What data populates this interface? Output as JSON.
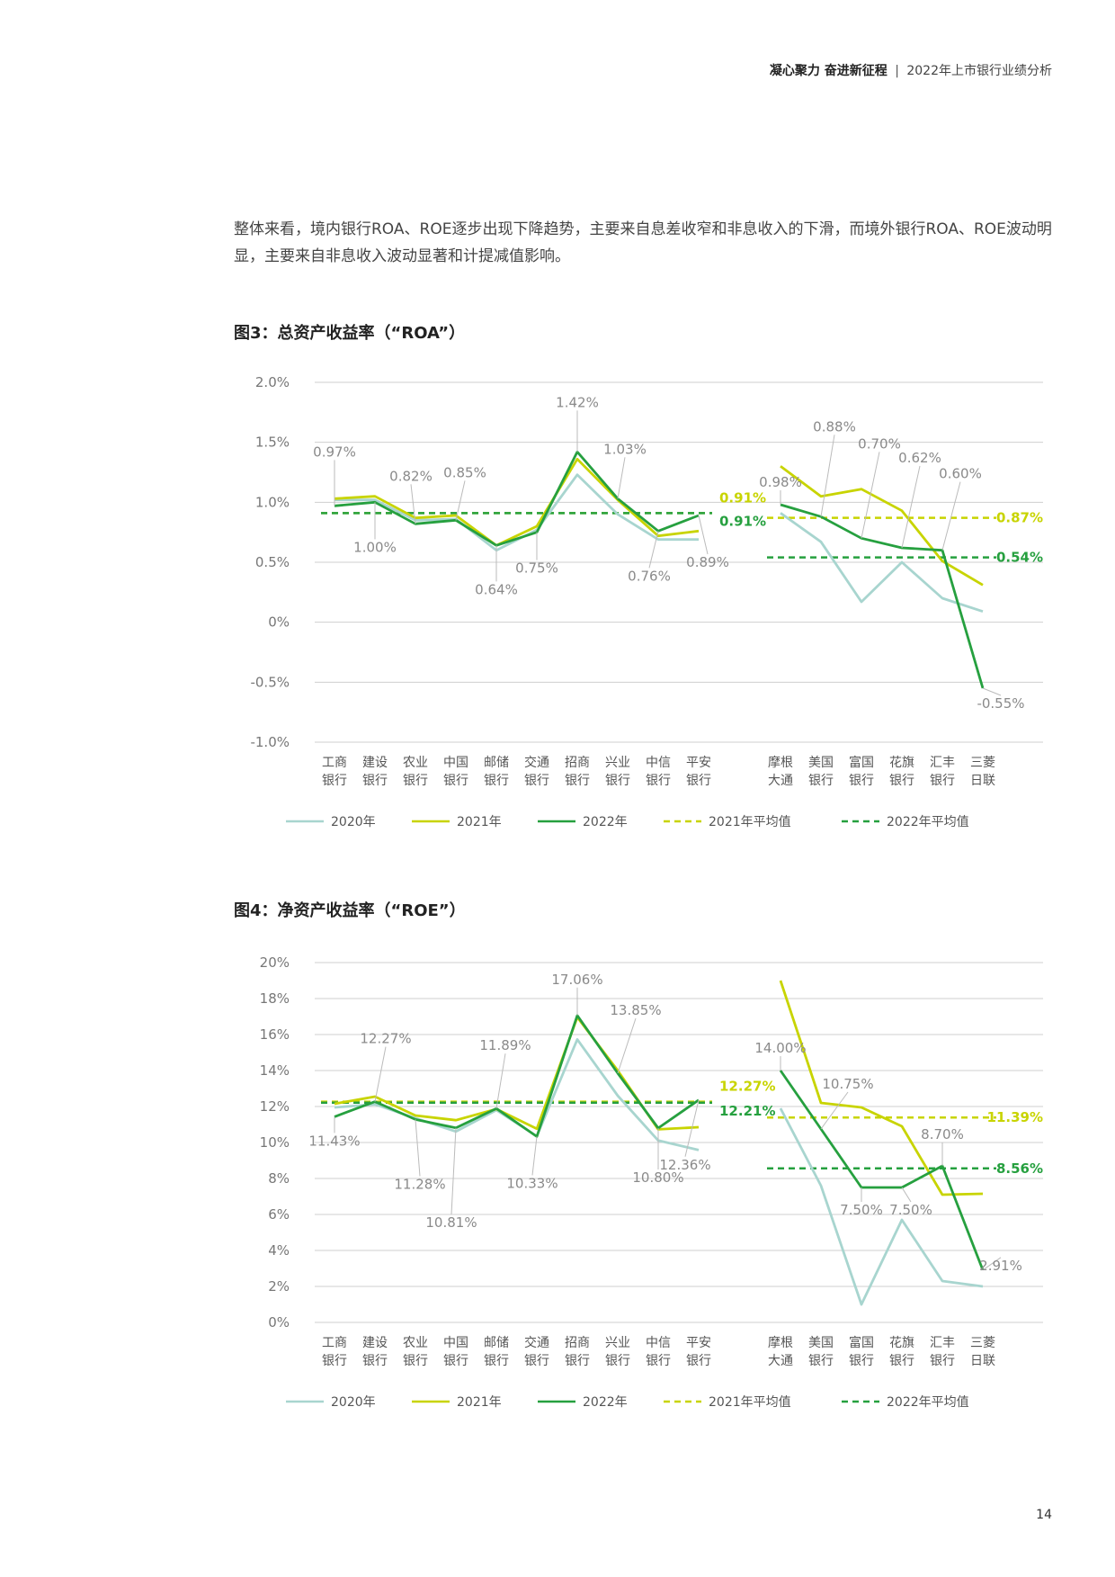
{
  "header": {
    "title": "凝心聚力 奋进新征程",
    "separator": "|",
    "subtitle": "2022年上市银行业绩分析"
  },
  "intro": "整体来看，境内银行ROA、ROE逐步出现下降趋势，主要来自息差收窄和非息收入的下滑，而境外银行ROA、ROE波动明显，主要来自非息收入波动显著和计提减值影响。",
  "colors": {
    "y2020": "#A8D5CF",
    "y2021": "#C8D400",
    "y2022": "#26A03F",
    "avg2021": "#C8D400",
    "avg2022": "#26A03F",
    "grid": "#cccccc",
    "text": "#666666"
  },
  "legend": [
    "2020年",
    "2021年",
    "2022年",
    "2021年平均值",
    "2022年平均值"
  ],
  "page_number": "14",
  "chart_data": [
    {
      "id": "roa",
      "type": "line",
      "title": "图3：总资产收益率（“ROA”）",
      "unit": "%",
      "ylim": [
        -1.0,
        2.0
      ],
      "yticks": [
        -1.0,
        -0.5,
        0,
        0.5,
        1.0,
        1.5,
        2.0
      ],
      "ytick_labels": [
        "-1.0%",
        "-0.5%",
        "0%",
        "0.5%",
        "1.0%",
        "1.5%",
        "2.0%"
      ],
      "grid": true,
      "legend_position": "bottom",
      "categories": [
        [
          "工商",
          "银行"
        ],
        [
          "建设",
          "银行"
        ],
        [
          "农业",
          "银行"
        ],
        [
          "中国",
          "银行"
        ],
        [
          "邮储",
          "银行"
        ],
        [
          "交通",
          "银行"
        ],
        [
          "招商",
          "银行"
        ],
        [
          "兴业",
          "银行"
        ],
        [
          "中信",
          "银行"
        ],
        [
          "平安",
          "银行"
        ],
        [
          "摩根",
          "大通"
        ],
        [
          "美国",
          "银行"
        ],
        [
          "富国",
          "银行"
        ],
        [
          "花旗",
          "银行"
        ],
        [
          "汇丰",
          "银行"
        ],
        [
          "三菱",
          "日联"
        ]
      ],
      "groups": [
        [
          0,
          9
        ],
        [
          10,
          15
        ]
      ],
      "series": [
        {
          "name": "2020年",
          "color": "#A8D5CF",
          "values": [
            1.02,
            1.02,
            0.85,
            0.86,
            0.6,
            0.77,
            1.23,
            0.9,
            0.69,
            0.69,
            0.91,
            0.67,
            0.17,
            0.5,
            0.2,
            0.09
          ]
        },
        {
          "name": "2021年",
          "color": "#C8D400",
          "values": [
            1.03,
            1.05,
            0.87,
            0.89,
            0.64,
            0.8,
            1.36,
            1.02,
            0.72,
            0.76,
            1.3,
            1.05,
            1.11,
            0.93,
            0.51,
            0.31
          ]
        },
        {
          "name": "2022年",
          "color": "#26A03F",
          "values": [
            0.97,
            1.0,
            0.82,
            0.85,
            0.64,
            0.75,
            1.42,
            1.03,
            0.76,
            0.89,
            0.98,
            0.88,
            0.7,
            0.62,
            0.6,
            -0.55
          ]
        }
      ],
      "averages": [
        {
          "name": "2021年平均值",
          "color": "#C8D400",
          "group": 0,
          "value": 0.91,
          "label": "0.91%"
        },
        {
          "name": "2022年平均值",
          "color": "#26A03F",
          "group": 0,
          "value": 0.91,
          "label": "0.91%"
        },
        {
          "name": "2021年平均值",
          "color": "#C8D400",
          "group": 1,
          "value": 0.87,
          "label": "0.87%"
        },
        {
          "name": "2022年平均值",
          "color": "#26A03F",
          "group": 1,
          "value": 0.54,
          "label": "0.54%"
        }
      ],
      "data_labels": [
        {
          "i": 0,
          "v": 0.97,
          "text": "0.97%"
        },
        {
          "i": 1,
          "v": 1.0,
          "text": "1.00%"
        },
        {
          "i": 2,
          "v": 0.82,
          "text": "0.82%"
        },
        {
          "i": 3,
          "v": 0.85,
          "text": "0.85%"
        },
        {
          "i": 4,
          "v": 0.64,
          "text": "0.64%"
        },
        {
          "i": 5,
          "v": 0.75,
          "text": "0.75%"
        },
        {
          "i": 6,
          "v": 1.42,
          "text": "1.42%"
        },
        {
          "i": 7,
          "v": 1.03,
          "text": "1.03%"
        },
        {
          "i": 8,
          "v": 0.76,
          "text": "0.76%"
        },
        {
          "i": 9,
          "v": 0.89,
          "text": "0.89%"
        },
        {
          "i": 10,
          "v": 0.98,
          "text": "0.98%"
        },
        {
          "i": 11,
          "v": 0.88,
          "text": "0.88%"
        },
        {
          "i": 12,
          "v": 0.7,
          "text": "0.70%"
        },
        {
          "i": 13,
          "v": 0.62,
          "text": "0.62%"
        },
        {
          "i": 14,
          "v": 0.6,
          "text": "0.60%"
        },
        {
          "i": 15,
          "v": -0.55,
          "text": "-0.55%"
        }
      ]
    },
    {
      "id": "roe",
      "type": "line",
      "title": "图4：净资产收益率（“ROE”）",
      "unit": "%",
      "ylim": [
        0,
        20
      ],
      "yticks": [
        0,
        2,
        4,
        6,
        8,
        10,
        12,
        14,
        16,
        18,
        20
      ],
      "ytick_labels": [
        "0%",
        "2%",
        "4%",
        "6%",
        "8%",
        "10%",
        "12%",
        "14%",
        "16%",
        "18%",
        "20%"
      ],
      "grid": true,
      "legend_position": "bottom",
      "categories": [
        [
          "工商",
          "银行"
        ],
        [
          "建设",
          "银行"
        ],
        [
          "农业",
          "银行"
        ],
        [
          "中国",
          "银行"
        ],
        [
          "邮储",
          "银行"
        ],
        [
          "交通",
          "银行"
        ],
        [
          "招商",
          "银行"
        ],
        [
          "兴业",
          "银行"
        ],
        [
          "中信",
          "银行"
        ],
        [
          "平安",
          "银行"
        ],
        [
          "摩根",
          "大通"
        ],
        [
          "美国",
          "银行"
        ],
        [
          "富国",
          "银行"
        ],
        [
          "花旗",
          "银行"
        ],
        [
          "汇丰",
          "银行"
        ],
        [
          "三菱",
          "日联"
        ]
      ],
      "groups": [
        [
          0,
          9
        ],
        [
          10,
          15
        ]
      ],
      "series": [
        {
          "name": "2020年",
          "color": "#A8D5CF",
          "values": [
            11.95,
            12.12,
            11.35,
            10.61,
            11.8,
            10.35,
            15.73,
            12.6,
            10.11,
            9.58,
            11.9,
            7.6,
            1.0,
            5.7,
            2.3,
            2.0
          ]
        },
        {
          "name": "2021年",
          "color": "#C8D400",
          "values": [
            12.15,
            12.55,
            11.5,
            11.24,
            11.86,
            10.76,
            16.96,
            14.0,
            10.73,
            10.85,
            19.0,
            12.2,
            11.95,
            10.9,
            7.1,
            7.15
          ]
        },
        {
          "name": "2022年",
          "color": "#26A03F",
          "values": [
            11.43,
            12.27,
            11.28,
            10.81,
            11.89,
            10.33,
            17.06,
            13.85,
            10.8,
            12.36,
            14.0,
            10.75,
            7.5,
            7.5,
            8.7,
            2.91
          ]
        }
      ],
      "averages": [
        {
          "name": "2021年平均值",
          "color": "#C8D400",
          "group": 0,
          "value": 12.27,
          "label": "12.27%"
        },
        {
          "name": "2022年平均值",
          "color": "#26A03F",
          "group": 0,
          "value": 12.21,
          "label": "12.21%"
        },
        {
          "name": "2021年平均值",
          "color": "#C8D400",
          "group": 1,
          "value": 11.39,
          "label": "11.39%"
        },
        {
          "name": "2022年平均值",
          "color": "#26A03F",
          "group": 1,
          "value": 8.56,
          "label": "8.56%"
        }
      ],
      "data_labels": [
        {
          "i": 0,
          "v": 11.43,
          "text": "11.43%"
        },
        {
          "i": 1,
          "v": 12.27,
          "text": "12.27%"
        },
        {
          "i": 2,
          "v": 11.28,
          "text": "11.28%"
        },
        {
          "i": 3,
          "v": 10.81,
          "text": "10.81%"
        },
        {
          "i": 4,
          "v": 11.89,
          "text": "11.89%"
        },
        {
          "i": 5,
          "v": 10.33,
          "text": "10.33%"
        },
        {
          "i": 6,
          "v": 17.06,
          "text": "17.06%"
        },
        {
          "i": 7,
          "v": 13.85,
          "text": "13.85%"
        },
        {
          "i": 8,
          "v": 10.8,
          "text": "10.80%"
        },
        {
          "i": 9,
          "v": 12.36,
          "text": "12.36%"
        },
        {
          "i": 10,
          "v": 14.0,
          "text": "14.00%"
        },
        {
          "i": 11,
          "v": 10.75,
          "text": "10.75%"
        },
        {
          "i": 12,
          "v": 7.5,
          "text": "7.50%"
        },
        {
          "i": 13,
          "v": 7.5,
          "text": "7.50%"
        },
        {
          "i": 14,
          "v": 8.7,
          "text": "8.70%"
        },
        {
          "i": 15,
          "v": 2.91,
          "text": "2.91%"
        }
      ]
    }
  ]
}
